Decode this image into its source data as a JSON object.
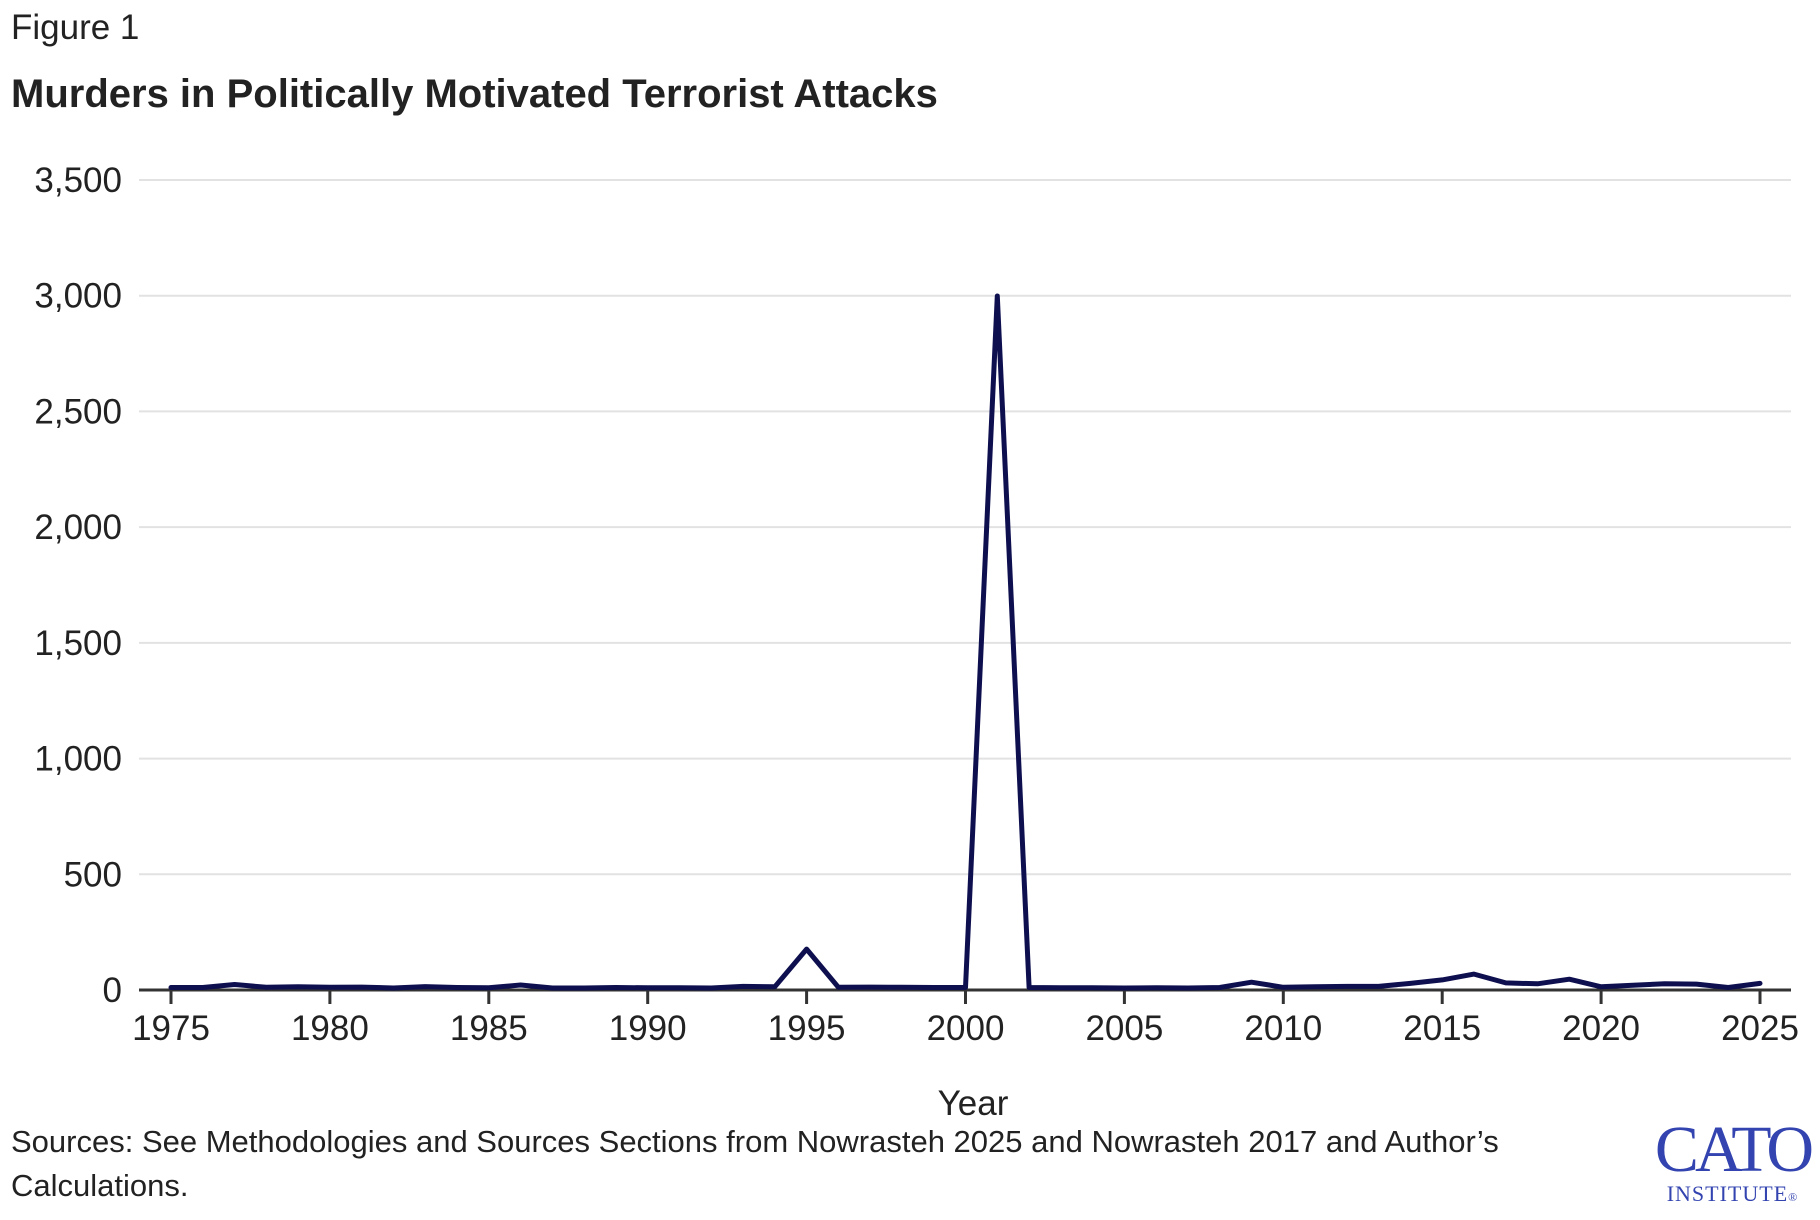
{
  "figure_label": "Figure 1",
  "sources": "Sources: See Methodologies and Sources Sections from Nowrasteh 2025 and Nowrasteh 2017 and Author’s Calculations.",
  "logo": {
    "line1": "CATO",
    "line2": "INSTITUTE",
    "mark": "®",
    "color": "#3344b0"
  },
  "chart_data": {
    "type": "line",
    "title": "Murders in Politically Motivated Terrorist Attacks",
    "xlabel": "Year",
    "ylabel": "",
    "xlim": [
      1975,
      2025
    ],
    "ylim": [
      0,
      3500
    ],
    "xticks": [
      1975,
      1980,
      1985,
      1990,
      1995,
      2000,
      2005,
      2010,
      2015,
      2020,
      2025
    ],
    "yticks": [
      0,
      500,
      1000,
      1500,
      2000,
      2500,
      3000,
      3500
    ],
    "ytick_labels": [
      "0",
      "500",
      "1,000",
      "1,500",
      "2,000",
      "2,500",
      "3,000",
      "3,500"
    ],
    "grid": "horizontal",
    "line_color": "#0e0f4f",
    "x": [
      1975,
      1976,
      1977,
      1978,
      1979,
      1980,
      1981,
      1982,
      1983,
      1984,
      1985,
      1986,
      1987,
      1988,
      1989,
      1990,
      1991,
      1992,
      1993,
      1994,
      1995,
      1996,
      1997,
      1998,
      1999,
      2000,
      2001,
      2002,
      2003,
      2004,
      2005,
      2006,
      2007,
      2008,
      2009,
      2010,
      2011,
      2012,
      2013,
      2014,
      2015,
      2016,
      2017,
      2018,
      2019,
      2020,
      2021,
      2022,
      2023,
      2024,
      2025
    ],
    "y": [
      2,
      2,
      15,
      3,
      5,
      3,
      4,
      0,
      6,
      2,
      1,
      13,
      0,
      0,
      2,
      1,
      1,
      0,
      7,
      5,
      168,
      3,
      4,
      3,
      2,
      2,
      2990,
      2,
      1,
      1,
      0,
      1,
      0,
      2,
      25,
      3,
      5,
      7,
      7,
      20,
      35,
      60,
      22,
      18,
      38,
      5,
      12,
      18,
      17,
      2,
      20
    ]
  }
}
